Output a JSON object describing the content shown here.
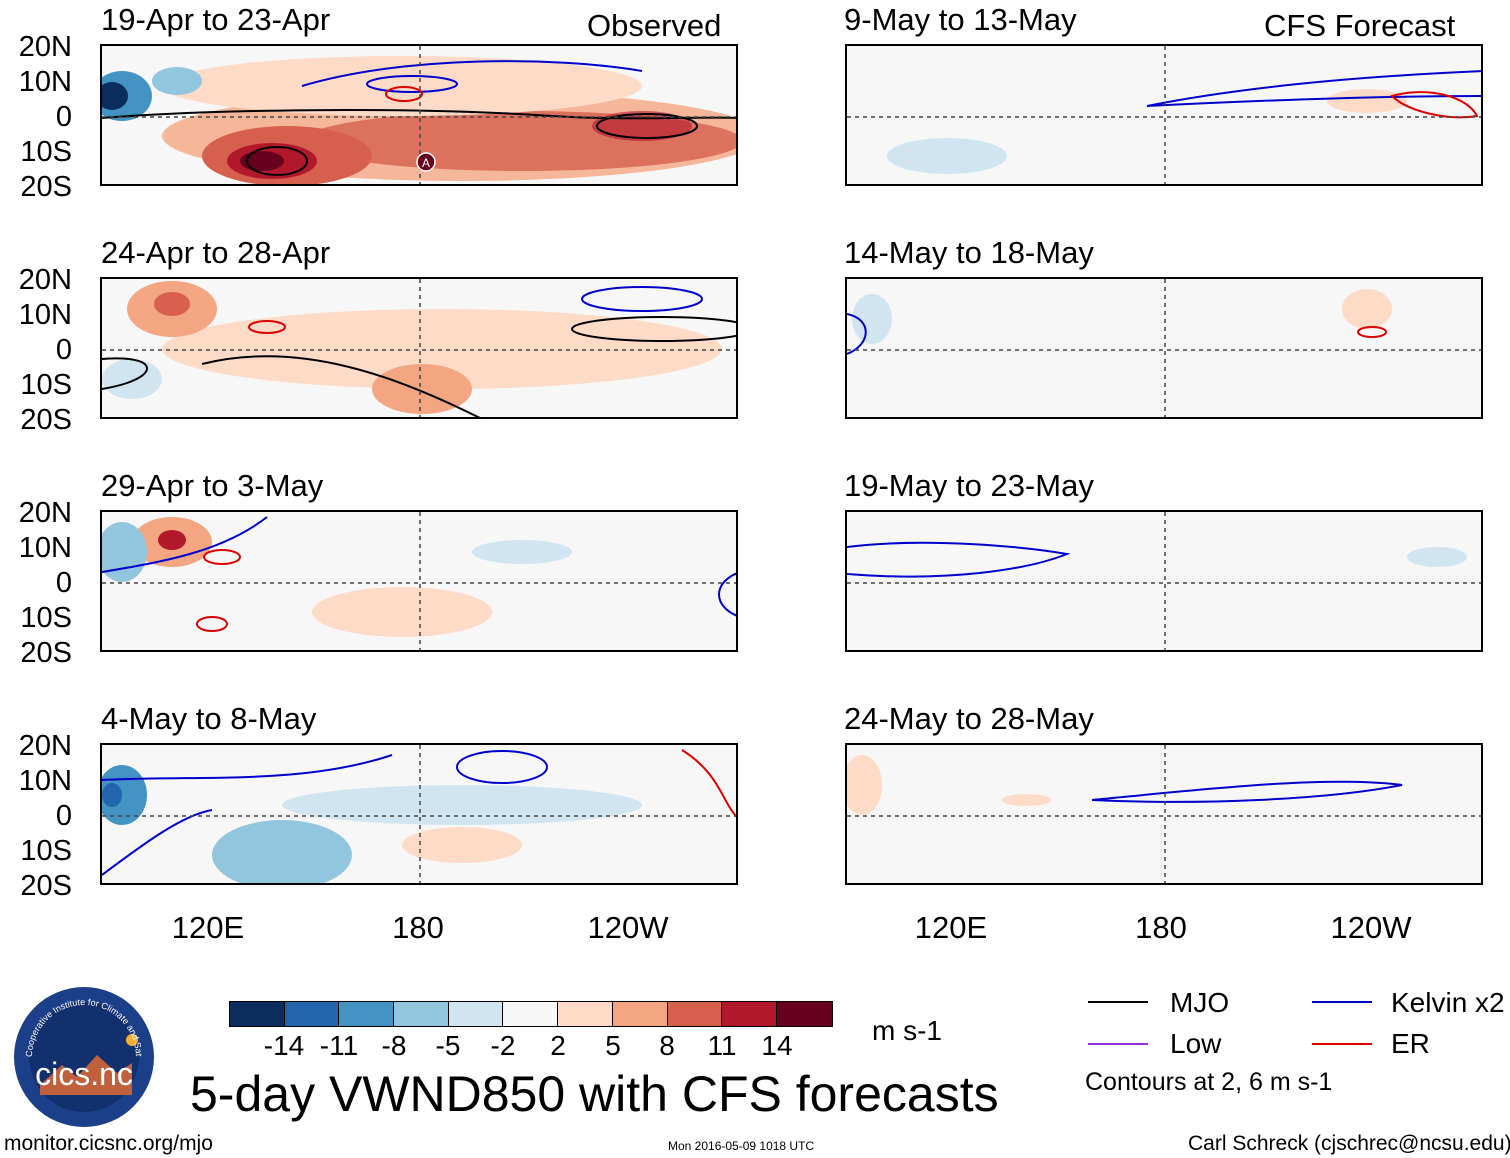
{
  "columns": {
    "left": {
      "label": "Observed"
    },
    "right": {
      "label": "CFS Forecast"
    }
  },
  "panels": {
    "left": [
      {
        "title": "19-Apr to 23-Apr"
      },
      {
        "title": "24-Apr to 28-Apr"
      },
      {
        "title": "29-Apr to 3-May"
      },
      {
        "title": "4-May to 8-May"
      }
    ],
    "right": [
      {
        "title": "9-May to 13-May"
      },
      {
        "title": "14-May to 18-May"
      },
      {
        "title": "19-May to 23-May"
      },
      {
        "title": "24-May to 28-May"
      }
    ]
  },
  "latitude_labels": [
    "20N",
    "10N",
    "0",
    "10S",
    "20S"
  ],
  "longitude_labels": [
    "120E",
    "180",
    "120W"
  ],
  "colorbar": {
    "colors": [
      "#0b2d5e",
      "#2166ac",
      "#4393c3",
      "#92c5de",
      "#d1e5f0",
      "#f7f7f7",
      "#fddbc7",
      "#f4a582",
      "#d6604d",
      "#b2182b",
      "#67001f"
    ],
    "ticks": [
      "-14",
      "-11",
      "-8",
      "-5",
      "-2",
      "2",
      "5",
      "8",
      "11",
      "14"
    ],
    "units": "m s-1"
  },
  "legend": {
    "items": [
      {
        "label": "MJO",
        "color": "#000000"
      },
      {
        "label": "Kelvin x2",
        "color": "#0000cc"
      },
      {
        "label": "Low",
        "color": "#9b30d9"
      },
      {
        "label": "ER",
        "color": "#dd0000"
      }
    ],
    "note": "Contours at 2, 6 m s-1"
  },
  "title": "5-day VWND850 with CFS forecasts",
  "footer": {
    "url": "monitor.cicsnc.org/mjo",
    "timestamp": "Mon 2016-05-09 1018 UTC",
    "author": "Carl Schreck (cjschrec@ncsu.edu)"
  },
  "logo": {
    "text": "cics.nc",
    "ring_text": "Cooperative Institute for Climate and Satellites"
  },
  "annotation": {
    "marker": "A"
  }
}
